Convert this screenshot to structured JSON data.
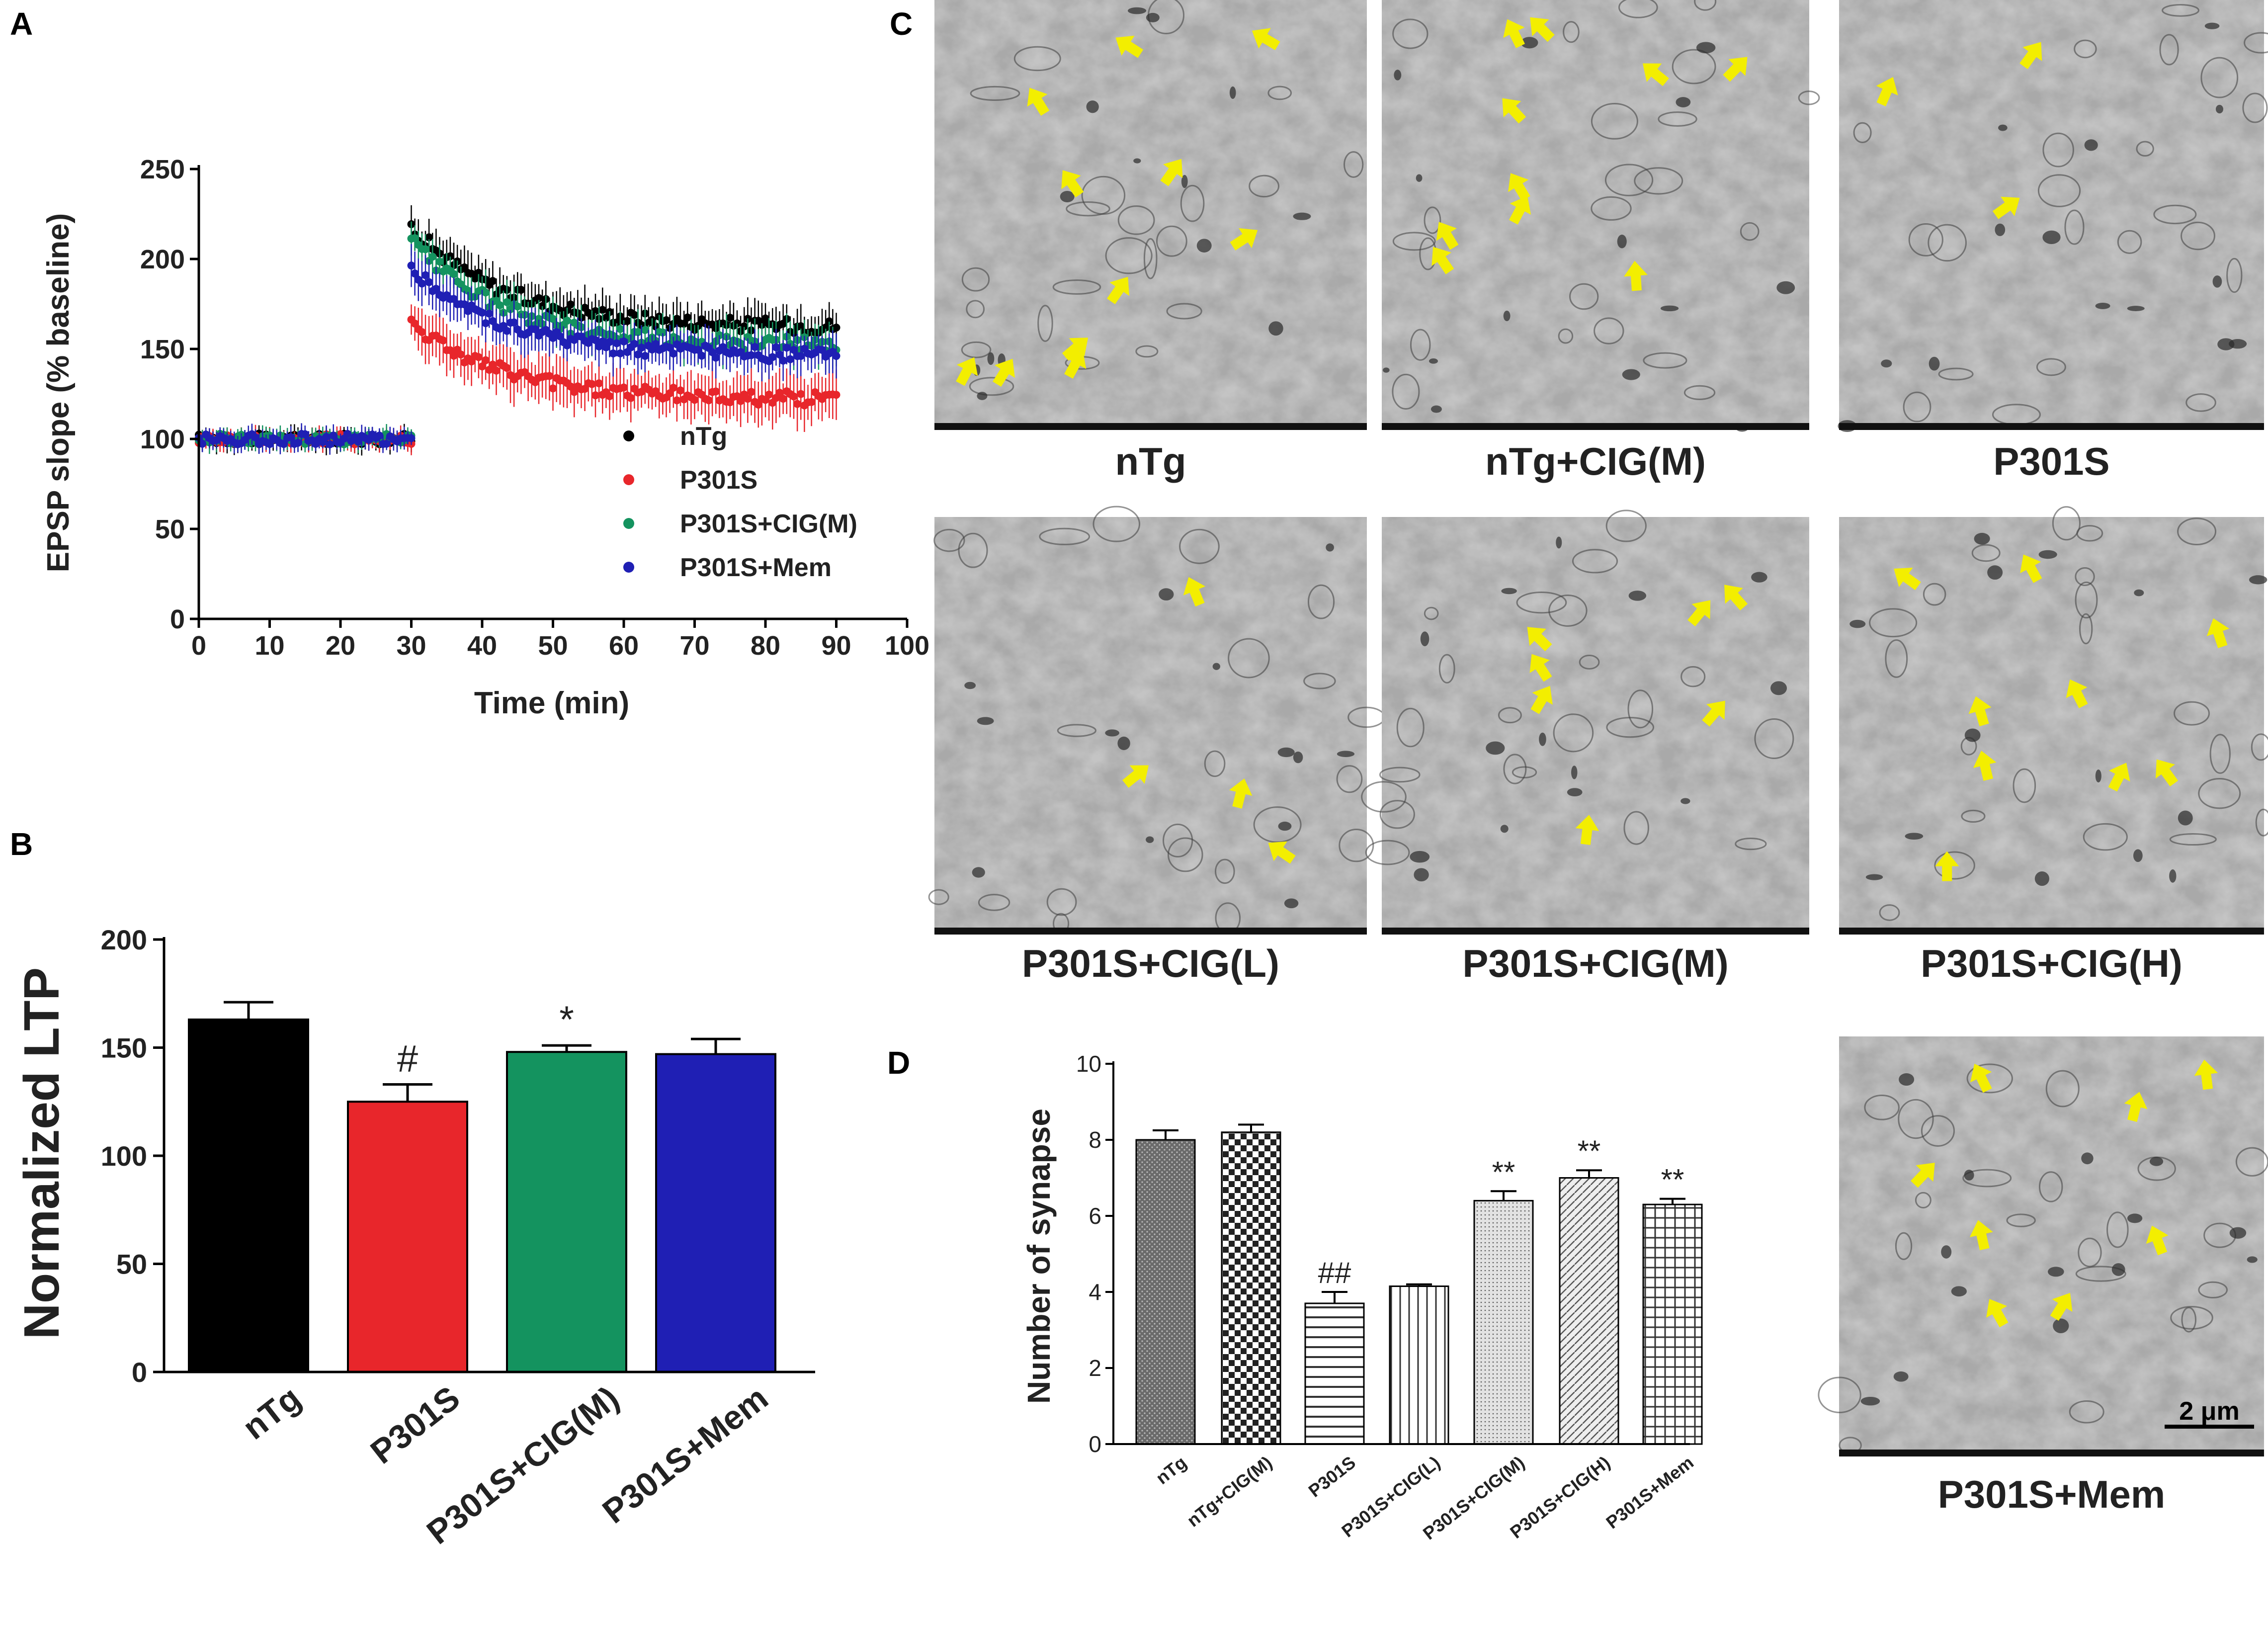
{
  "panel_letters": {
    "a": "A",
    "b": "B",
    "c": "C",
    "d": "D"
  },
  "colors": {
    "nTg": "#000000",
    "P301S": "#e8262b",
    "CIG_M": "#14935f",
    "Mem": "#1f1fb4",
    "arrow": "#f3ee00"
  },
  "chart_data": [
    {
      "id": "A",
      "type": "scatter",
      "title": "",
      "xlabel": "Time (min)",
      "ylabel": "EPSP slope (% baseline)",
      "xlim": [
        0,
        100
      ],
      "ylim": [
        0,
        250
      ],
      "xticks": [
        "0",
        "10",
        "20",
        "30",
        "40",
        "50",
        "60",
        "70",
        "80",
        "90",
        "100"
      ],
      "yticks": [
        "0",
        "50",
        "100",
        "150",
        "200",
        "250"
      ],
      "error_bars": true,
      "legend_position": "bottom-right",
      "series": [
        {
          "name": "nTg",
          "color": "#000000",
          "baseline": {
            "x": [
              0,
              30
            ],
            "y": 100,
            "err": 5
          },
          "after": {
            "x": [
              30,
              90
            ],
            "peak": 218,
            "end": 162,
            "tau": 13,
            "err": 10
          }
        },
        {
          "name": "P301S",
          "color": "#e8262b",
          "baseline": {
            "x": [
              0,
              30
            ],
            "y": 100,
            "err": 5
          },
          "after": {
            "x": [
              30,
              90
            ],
            "peak": 165,
            "end": 122,
            "tau": 13,
            "err": 12
          }
        },
        {
          "name": "P301S+CIG(M)",
          "color": "#14935f",
          "baseline": {
            "x": [
              0,
              30
            ],
            "y": 100,
            "err": 5
          },
          "after": {
            "x": [
              30,
              90
            ],
            "peak": 210,
            "end": 152,
            "tau": 13,
            "err": 10
          }
        },
        {
          "name": "P301S+Mem",
          "color": "#1f1fb4",
          "baseline": {
            "x": [
              0,
              30
            ],
            "y": 100,
            "err": 5
          },
          "after": {
            "x": [
              30,
              90
            ],
            "peak": 195,
            "end": 146,
            "tau": 13,
            "err": 10
          }
        }
      ]
    },
    {
      "id": "B",
      "type": "bar",
      "title": "",
      "xlabel": "",
      "ylabel": "Normalized LTP",
      "ylim": [
        0,
        200
      ],
      "yticks": [
        "0",
        "50",
        "100",
        "150",
        "200"
      ],
      "categories": [
        "nTg",
        "P301S",
        "P301S+CIG(M)",
        "P301S+Mem"
      ],
      "values": [
        163,
        125,
        148,
        147
      ],
      "errors": [
        8,
        8,
        3,
        7
      ],
      "colors": [
        "#000000",
        "#e8262b",
        "#14935f",
        "#1f1fb4"
      ],
      "annotations": [
        "",
        "#",
        "*",
        ""
      ]
    },
    {
      "id": "D",
      "type": "bar",
      "title": "",
      "xlabel": "",
      "ylabel": "Number of synapse",
      "ylim": [
        0,
        10
      ],
      "yticks": [
        "0",
        "2",
        "4",
        "6",
        "8",
        "10"
      ],
      "categories": [
        "nTg",
        "nTg+CIG(M)",
        "P301S",
        "P301S+CIG(L)",
        "P301S+CIG(M)",
        "P301S+CIG(H)",
        "P301S+Mem"
      ],
      "values": [
        8.0,
        8.2,
        3.7,
        4.15,
        6.4,
        7.0,
        6.3
      ],
      "errors": [
        0.25,
        0.2,
        0.3,
        0.05,
        0.25,
        0.2,
        0.15
      ],
      "patterns": [
        "dense-dots",
        "checker",
        "horizontal-lines",
        "vertical-lines",
        "fine-dots",
        "diagonal-lines",
        "grid"
      ],
      "annotations": [
        "",
        "",
        "##",
        "",
        "**",
        "**",
        "**"
      ]
    }
  ],
  "micrographs": [
    {
      "label": "nTg",
      "arrows": 11
    },
    {
      "label": "nTg+CIG(M)",
      "arrows": 10
    },
    {
      "label": "P301S",
      "arrows": 3
    },
    {
      "label": "P301S+CIG(L)",
      "arrows": 4
    },
    {
      "label": "P301S+CIG(M)",
      "arrows": 7
    },
    {
      "label": "P301S+CIG(H)",
      "arrows": 9
    },
    {
      "label": "P301S+Mem",
      "arrows": 8
    }
  ],
  "scale_bar": "2 μm"
}
